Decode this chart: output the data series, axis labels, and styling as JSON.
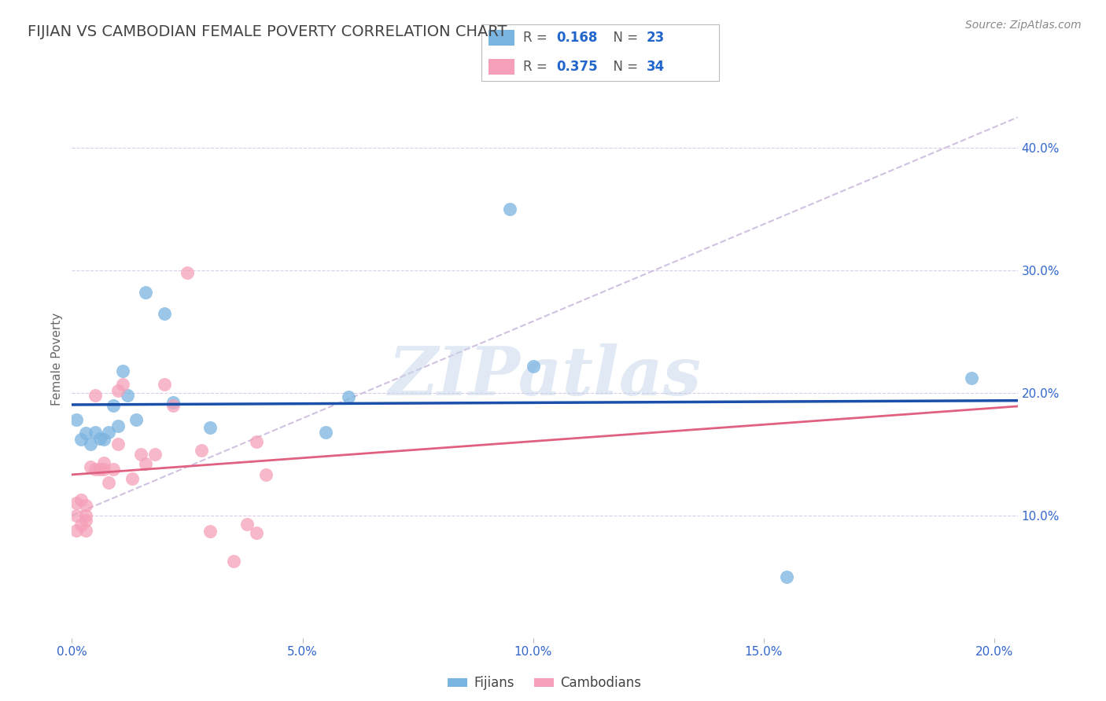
{
  "title": "FIJIAN VS CAMBODIAN FEMALE POVERTY CORRELATION CHART",
  "source": "Source: ZipAtlas.com",
  "ylabel": "Female Poverty",
  "r_fijian": 0.168,
  "n_fijian": 23,
  "r_cambodian": 0.375,
  "n_cambodian": 34,
  "fijian_color": "#7ab4e0",
  "cambodian_color": "#f5a0b8",
  "fijian_line_color": "#1a4faa",
  "cambodian_line_color": "#e06080",
  "ref_line_color": "#ccbbdd",
  "watermark_color": "#c5d5ea",
  "xlim": [
    0.0,
    0.205
  ],
  "ylim": [
    0.0,
    0.455
  ],
  "yticks": [
    0.1,
    0.2,
    0.3,
    0.4
  ],
  "ytick_labels": [
    "10.0%",
    "20.0%",
    "30.0%",
    "40.0%"
  ],
  "xticks": [
    0.0,
    0.05,
    0.1,
    0.15,
    0.2
  ],
  "xtick_labels": [
    "0.0%",
    "5.0%",
    "10.0%",
    "15.0%",
    "20.0%"
  ],
  "fijian_x": [
    0.001,
    0.002,
    0.003,
    0.004,
    0.005,
    0.006,
    0.007,
    0.008,
    0.009,
    0.01,
    0.011,
    0.012,
    0.014,
    0.016,
    0.02,
    0.022,
    0.03,
    0.055,
    0.06,
    0.095,
    0.1,
    0.155,
    0.195
  ],
  "fijian_y": [
    0.178,
    0.162,
    0.167,
    0.158,
    0.168,
    0.163,
    0.162,
    0.168,
    0.19,
    0.173,
    0.218,
    0.198,
    0.178,
    0.282,
    0.265,
    0.192,
    0.172,
    0.168,
    0.197,
    0.35,
    0.222,
    0.05,
    0.212
  ],
  "cambodian_x": [
    0.001,
    0.001,
    0.001,
    0.002,
    0.002,
    0.003,
    0.003,
    0.003,
    0.003,
    0.004,
    0.005,
    0.005,
    0.006,
    0.007,
    0.007,
    0.008,
    0.009,
    0.01,
    0.01,
    0.011,
    0.013,
    0.015,
    0.016,
    0.018,
    0.02,
    0.022,
    0.025,
    0.028,
    0.03,
    0.035,
    0.038,
    0.04,
    0.04,
    0.042
  ],
  "cambodian_y": [
    0.088,
    0.1,
    0.11,
    0.092,
    0.113,
    0.1,
    0.108,
    0.096,
    0.088,
    0.14,
    0.138,
    0.198,
    0.138,
    0.138,
    0.143,
    0.127,
    0.138,
    0.158,
    0.202,
    0.207,
    0.13,
    0.15,
    0.142,
    0.15,
    0.207,
    0.19,
    0.298,
    0.153,
    0.087,
    0.063,
    0.093,
    0.16,
    0.086,
    0.133
  ],
  "legend_fijian_label": "Fijians",
  "legend_cambodian_label": "Cambodians",
  "watermark": "ZIPatlas"
}
